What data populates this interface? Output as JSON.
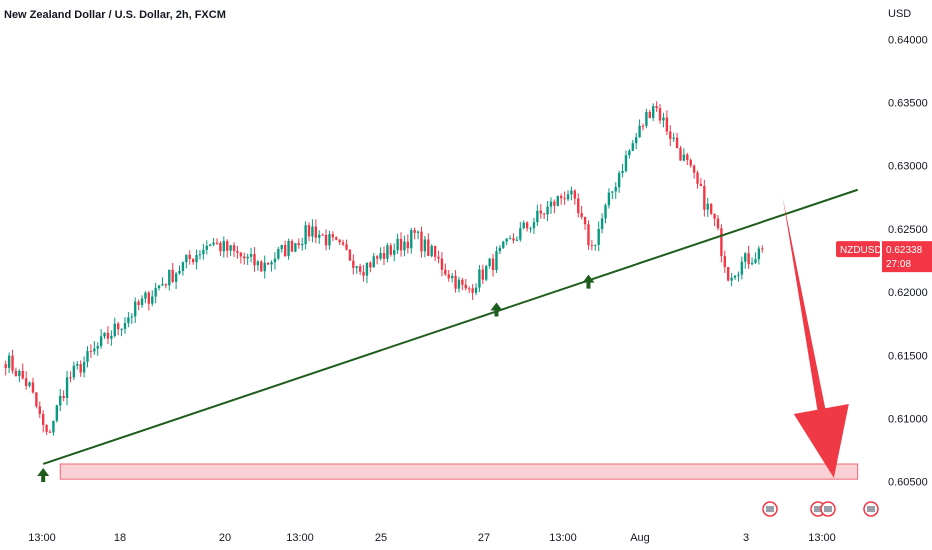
{
  "colors": {
    "up": "#089981",
    "down": "#f23645",
    "trendline": "#1e5d1e",
    "zone_fill": "#f8c8cc",
    "zone_stroke": "#e84f5d",
    "forecast_arrow": "#ef3a45",
    "price_tag": "#f23645",
    "text": "#131722"
  },
  "header": {
    "title": "New Zealand Dollar / U.S. Dollar, 2h, FXCM"
  },
  "chart_data": {
    "type": "candlestick",
    "title": "New Zealand Dollar / U.S. Dollar, 2h, FXCM",
    "symbol": "NZDUSD",
    "currency": "USD",
    "last_price": "0.62338",
    "countdown": "27:08",
    "y_ticks": [
      "0.64000",
      "0.63500",
      "0.63000",
      "0.62500",
      "0.62000",
      "0.61500",
      "0.61000",
      "0.60500"
    ],
    "x_ticks": [
      "13:00",
      "18",
      "20",
      "13:00",
      "25",
      "27",
      "13:00",
      "Aug",
      "3",
      "13:00"
    ],
    "ylim": [
      0.6045,
      0.6409
    ],
    "grid": false,
    "approximate_path": [
      {
        "bar": 0,
        "price": 0.6147
      },
      {
        "bar": 7,
        "price": 0.6125
      },
      {
        "bar": 12,
        "price": 0.6085
      },
      {
        "bar": 18,
        "price": 0.613
      },
      {
        "bar": 30,
        "price": 0.6165
      },
      {
        "bar": 45,
        "price": 0.6205
      },
      {
        "bar": 60,
        "price": 0.624
      },
      {
        "bar": 75,
        "price": 0.622
      },
      {
        "bar": 90,
        "price": 0.625
      },
      {
        "bar": 105,
        "price": 0.622
      },
      {
        "bar": 120,
        "price": 0.6245
      },
      {
        "bar": 135,
        "price": 0.62
      },
      {
        "bar": 150,
        "price": 0.6245
      },
      {
        "bar": 165,
        "price": 0.628
      },
      {
        "bar": 172,
        "price": 0.6235
      },
      {
        "bar": 180,
        "price": 0.6295
      },
      {
        "bar": 190,
        "price": 0.635
      },
      {
        "bar": 200,
        "price": 0.63
      },
      {
        "bar": 208,
        "price": 0.6255
      },
      {
        "bar": 212,
        "price": 0.6215
      },
      {
        "bar": 222,
        "price": 0.6234
      }
    ],
    "bars_total": 222,
    "trendline": {
      "from": {
        "bar": 11,
        "price": 0.6064
      },
      "to": {
        "bar": 250,
        "price": 0.6281
      }
    },
    "support_zone": {
      "price_low": 0.6052,
      "price_high": 0.6064
    },
    "swing_lows_marked": [
      {
        "bar": 11,
        "price": 0.6064
      },
      {
        "bar": 144,
        "price": 0.6195
      },
      {
        "bar": 171,
        "price": 0.6217
      }
    ],
    "forecast_arrow": {
      "from": {
        "bar": 228,
        "price": 0.6275
      },
      "to": {
        "bar": 243,
        "price": 0.6053
      }
    },
    "event_icons": 4
  }
}
